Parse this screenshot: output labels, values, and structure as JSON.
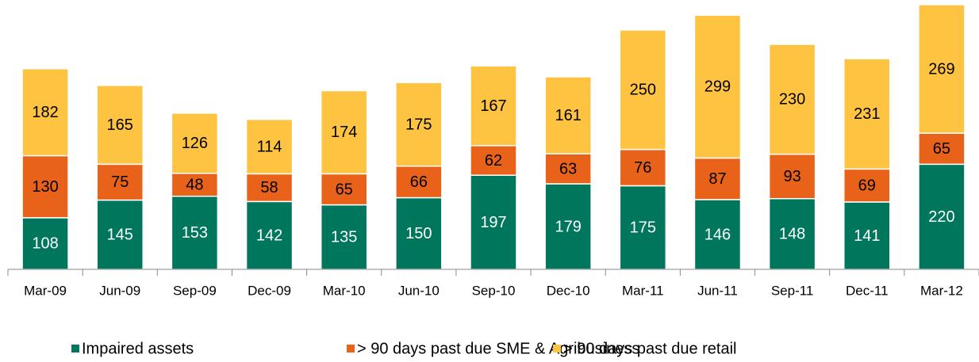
{
  "chart_data": {
    "type": "stacked_bar",
    "categories": [
      "Mar-09",
      "Jun-09",
      "Sep-09",
      "Dec-09",
      "Mar-10",
      "Jun-10",
      "Sep-10",
      "Dec-10",
      "Mar-11",
      "Jun-11",
      "Sep-11",
      "Dec-11",
      "Mar-12"
    ],
    "series": [
      {
        "name": "Impaired assets",
        "color": "#00775d",
        "label_color": "#ffffff",
        "values": [
          108,
          145,
          153,
          142,
          135,
          150,
          197,
          179,
          175,
          146,
          148,
          141,
          220
        ]
      },
      {
        "name": "> 90 days past due SME & Agribusiness",
        "color": "#e8621a",
        "label_color": "#000000",
        "values": [
          130,
          75,
          48,
          58,
          65,
          66,
          62,
          63,
          76,
          87,
          93,
          69,
          65
        ]
      },
      {
        "name": "> 90 days past due retail",
        "color": "#fec340",
        "label_color": "#000000",
        "values": [
          182,
          165,
          126,
          114,
          174,
          175,
          167,
          161,
          250,
          299,
          230,
          231,
          269
        ]
      }
    ],
    "legend": "bottom"
  }
}
